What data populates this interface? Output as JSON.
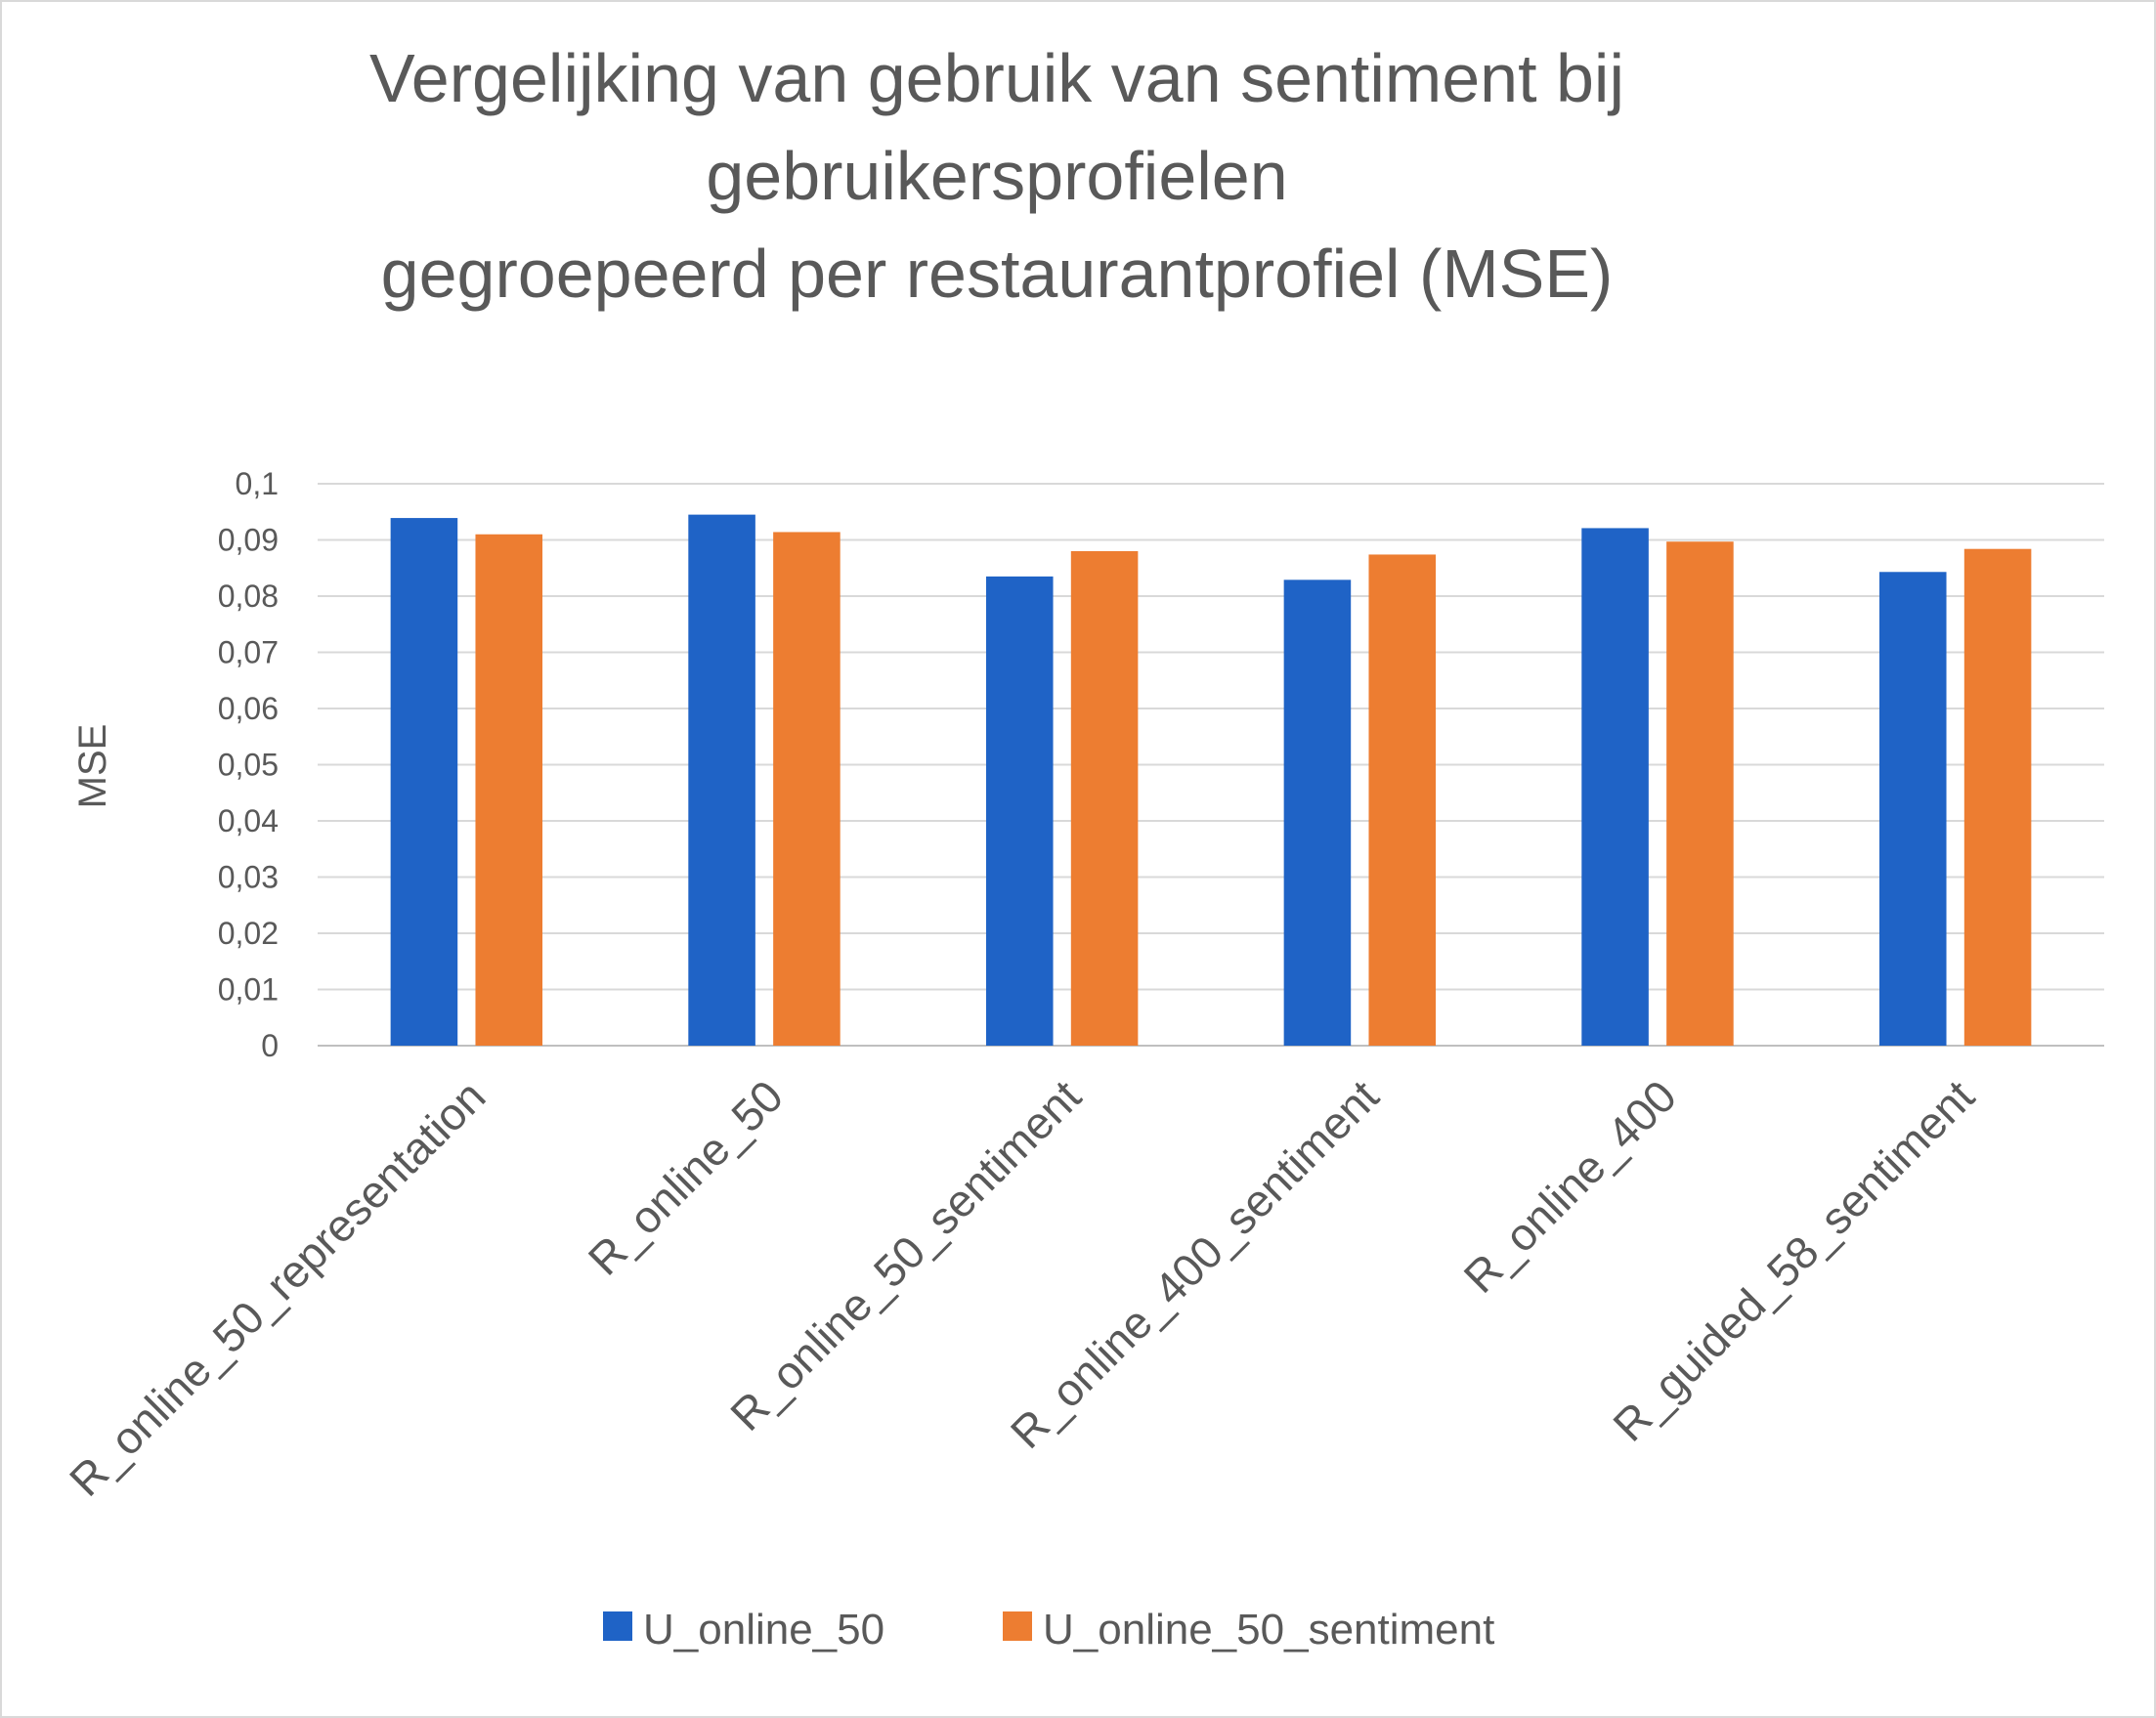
{
  "chart_data": {
    "type": "bar",
    "title_lines": [
      "Vergelijking van gebruik van sentiment bij",
      "gebruikersprofielen",
      "gegroepeerd per restaurantprofiel (MSE)"
    ],
    "xlabel": "",
    "ylabel": "MSE",
    "ylim": [
      0,
      0.1
    ],
    "yticks": [
      "0",
      "0,01",
      "0,02",
      "0,03",
      "0,04",
      "0,05",
      "0,06",
      "0,07",
      "0,08",
      "0,09",
      "0,1"
    ],
    "categories": [
      "R_online_50_representation",
      "R_online_50",
      "R_online_50_sentiment",
      "R_online_400_sentiment",
      "R_online_400",
      "R_guided_58_sentiment"
    ],
    "series": [
      {
        "name": "U_online_50",
        "color": "#1F63C6",
        "values": [
          0.0939,
          0.0945,
          0.0835,
          0.0829,
          0.0921,
          0.0843
        ]
      },
      {
        "name": "U_online_50_sentiment",
        "color": "#ED7D31",
        "values": [
          0.091,
          0.0914,
          0.088,
          0.0874,
          0.0897,
          0.0884
        ]
      }
    ],
    "grid": true,
    "legend_position": "bottom"
  }
}
